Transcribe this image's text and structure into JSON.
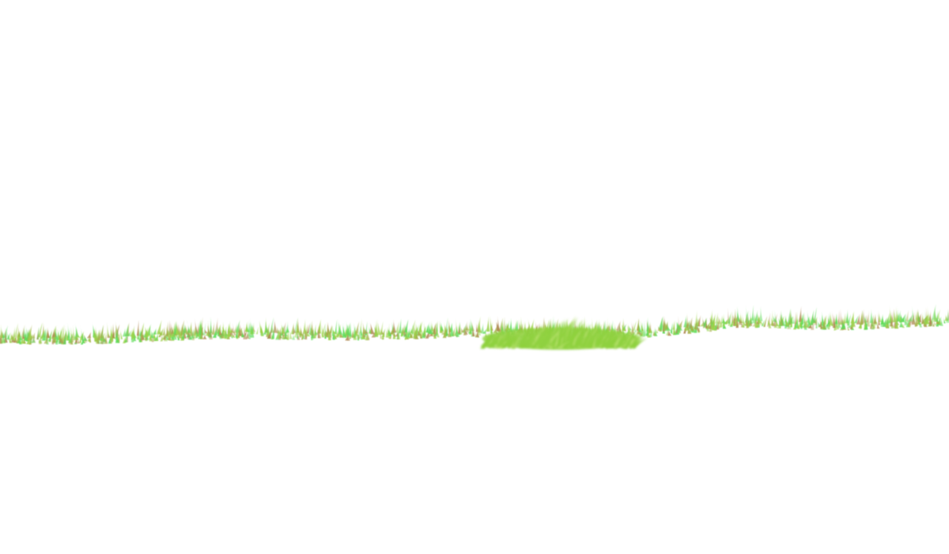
{
  "scene": {
    "description_type": "grass-strip-on-white",
    "background_color": "#ffffff",
    "colors": {
      "grass_light": "#9bd24a",
      "grass_bright": "#5fdc5a",
      "grass_olive": "#a5b04a",
      "grass_brown": "#b08a55",
      "tuft_main": "#8fd13f",
      "tuft_highlight": "#b6e06a"
    },
    "icons": {
      "grass_strip": "grass-strip-icon",
      "grass_tuft": "grass-tuft-icon"
    }
  }
}
